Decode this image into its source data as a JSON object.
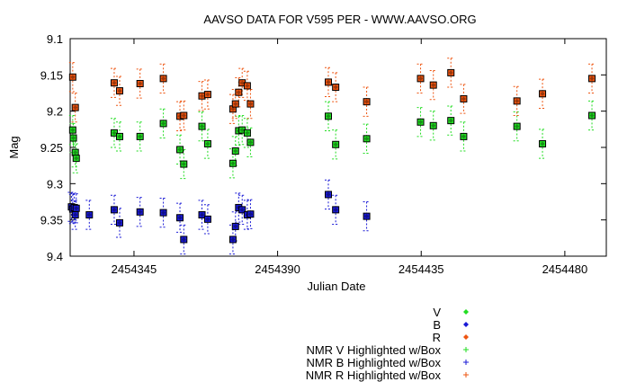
{
  "chart_data": {
    "type": "scatter",
    "title": "AAVSO DATA FOR V595 PER - WWW.AAVSO.ORG",
    "xlabel": "Julian Date",
    "ylabel": "Mag",
    "xlim": [
      2454325,
      2454493
    ],
    "ylim": [
      9.1,
      9.4
    ],
    "y_inverted": true,
    "grid": false,
    "legend_position": "bottom-right",
    "x_ticks": [
      {
        "value": 2454345,
        "label": "2454345"
      },
      {
        "value": 2454390,
        "label": "2454390"
      },
      {
        "value": 2454435,
        "label": "2454435"
      },
      {
        "value": 2454480,
        "label": "2454480"
      }
    ],
    "y_ticks": [
      {
        "value": 9.1,
        "label": "9.1"
      },
      {
        "value": 9.15,
        "label": "9.15"
      },
      {
        "value": 9.2,
        "label": "9.2"
      },
      {
        "value": 9.25,
        "label": "9.25"
      },
      {
        "value": 9.3,
        "label": "9.3"
      },
      {
        "value": 9.35,
        "label": "9.35"
      },
      {
        "value": 9.4,
        "label": "9.4"
      }
    ],
    "series": [
      {
        "name": "V",
        "color": "#22dd22",
        "marker": "diamond",
        "points": [
          {
            "x": 2454325.8,
            "y": 9.226,
            "err": 0.02
          },
          {
            "x": 2454326.0,
            "y": 9.237,
            "err": 0.02
          },
          {
            "x": 2454326.6,
            "y": 9.257,
            "err": 0.02
          },
          {
            "x": 2454326.9,
            "y": 9.265,
            "err": 0.02
          },
          {
            "x": 2454338.8,
            "y": 9.23,
            "err": 0.02
          },
          {
            "x": 2454340.5,
            "y": 9.235,
            "err": 0.02
          },
          {
            "x": 2454346.9,
            "y": 9.235,
            "err": 0.02
          },
          {
            "x": 2454354.2,
            "y": 9.217,
            "err": 0.02
          },
          {
            "x": 2454359.4,
            "y": 9.253,
            "err": 0.02
          },
          {
            "x": 2454360.6,
            "y": 9.273,
            "err": 0.02
          },
          {
            "x": 2454366.3,
            "y": 9.221,
            "err": 0.02
          },
          {
            "x": 2454368.1,
            "y": 9.245,
            "err": 0.02
          },
          {
            "x": 2454376.0,
            "y": 9.272,
            "err": 0.02
          },
          {
            "x": 2454376.8,
            "y": 9.255,
            "err": 0.02
          },
          {
            "x": 2454377.8,
            "y": 9.227,
            "err": 0.02
          },
          {
            "x": 2454378.9,
            "y": 9.226,
            "err": 0.02
          },
          {
            "x": 2454380.5,
            "y": 9.23,
            "err": 0.02
          },
          {
            "x": 2454381.5,
            "y": 9.243,
            "err": 0.02
          },
          {
            "x": 2454405.9,
            "y": 9.207,
            "err": 0.02
          },
          {
            "x": 2454408.2,
            "y": 9.246,
            "err": 0.02
          },
          {
            "x": 2454417.9,
            "y": 9.238,
            "err": 0.02
          },
          {
            "x": 2454434.8,
            "y": 9.215,
            "err": 0.02
          },
          {
            "x": 2454438.8,
            "y": 9.22,
            "err": 0.02
          },
          {
            "x": 2454444.3,
            "y": 9.213,
            "err": 0.02
          },
          {
            "x": 2454448.3,
            "y": 9.235,
            "err": 0.02
          },
          {
            "x": 2454465.0,
            "y": 9.221,
            "err": 0.02
          },
          {
            "x": 2454473.0,
            "y": 9.245,
            "err": 0.02
          },
          {
            "x": 2454488.5,
            "y": 9.206,
            "err": 0.02
          }
        ]
      },
      {
        "name": "B",
        "color": "#1a1ad6",
        "marker": "diamond",
        "points": [
          {
            "x": 2454325.4,
            "y": 9.332,
            "err": 0.02
          },
          {
            "x": 2454325.8,
            "y": 9.335,
            "err": 0.02
          },
          {
            "x": 2454326.3,
            "y": 9.333,
            "err": 0.02
          },
          {
            "x": 2454326.6,
            "y": 9.343,
            "err": 0.02
          },
          {
            "x": 2454326.9,
            "y": 9.334,
            "err": 0.02
          },
          {
            "x": 2454331.0,
            "y": 9.343,
            "err": 0.02
          },
          {
            "x": 2454338.8,
            "y": 9.336,
            "err": 0.02
          },
          {
            "x": 2454340.5,
            "y": 9.354,
            "err": 0.02
          },
          {
            "x": 2454346.9,
            "y": 9.339,
            "err": 0.02
          },
          {
            "x": 2454354.2,
            "y": 9.34,
            "err": 0.02
          },
          {
            "x": 2454359.4,
            "y": 9.347,
            "err": 0.02
          },
          {
            "x": 2454360.6,
            "y": 9.377,
            "err": 0.02
          },
          {
            "x": 2454366.3,
            "y": 9.343,
            "err": 0.02
          },
          {
            "x": 2454368.1,
            "y": 9.349,
            "err": 0.02
          },
          {
            "x": 2454376.0,
            "y": 9.377,
            "err": 0.02
          },
          {
            "x": 2454376.8,
            "y": 9.359,
            "err": 0.02
          },
          {
            "x": 2454377.8,
            "y": 9.333,
            "err": 0.02
          },
          {
            "x": 2454378.9,
            "y": 9.336,
            "err": 0.02
          },
          {
            "x": 2454380.5,
            "y": 9.343,
            "err": 0.02
          },
          {
            "x": 2454381.5,
            "y": 9.342,
            "err": 0.02
          },
          {
            "x": 2454405.9,
            "y": 9.315,
            "err": 0.02
          },
          {
            "x": 2454408.2,
            "y": 9.336,
            "err": 0.02
          },
          {
            "x": 2454417.9,
            "y": 9.345,
            "err": 0.02
          }
        ]
      },
      {
        "name": "R",
        "color": "#ee5511",
        "marker": "diamond",
        "points": [
          {
            "x": 2454325.8,
            "y": 9.153,
            "err": 0.02
          },
          {
            "x": 2454326.6,
            "y": 9.195,
            "err": 0.02
          },
          {
            "x": 2454338.8,
            "y": 9.161,
            "err": 0.02
          },
          {
            "x": 2454340.5,
            "y": 9.172,
            "err": 0.02
          },
          {
            "x": 2454346.9,
            "y": 9.162,
            "err": 0.02
          },
          {
            "x": 2454354.2,
            "y": 9.155,
            "err": 0.02
          },
          {
            "x": 2454359.4,
            "y": 9.207,
            "err": 0.02
          },
          {
            "x": 2454360.6,
            "y": 9.206,
            "err": 0.02
          },
          {
            "x": 2454366.3,
            "y": 9.179,
            "err": 0.02
          },
          {
            "x": 2454368.1,
            "y": 9.177,
            "err": 0.02
          },
          {
            "x": 2454376.0,
            "y": 9.197,
            "err": 0.02
          },
          {
            "x": 2454376.8,
            "y": 9.19,
            "err": 0.02
          },
          {
            "x": 2454377.8,
            "y": 9.174,
            "err": 0.02
          },
          {
            "x": 2454378.9,
            "y": 9.161,
            "err": 0.02
          },
          {
            "x": 2454380.5,
            "y": 9.165,
            "err": 0.02
          },
          {
            "x": 2454381.5,
            "y": 9.19,
            "err": 0.02
          },
          {
            "x": 2454405.9,
            "y": 9.16,
            "err": 0.02
          },
          {
            "x": 2454408.2,
            "y": 9.167,
            "err": 0.02
          },
          {
            "x": 2454417.9,
            "y": 9.187,
            "err": 0.02
          },
          {
            "x": 2454434.8,
            "y": 9.155,
            "err": 0.02
          },
          {
            "x": 2454438.8,
            "y": 9.164,
            "err": 0.02
          },
          {
            "x": 2454444.3,
            "y": 9.147,
            "err": 0.02
          },
          {
            "x": 2454448.3,
            "y": 9.183,
            "err": 0.02
          },
          {
            "x": 2454465.0,
            "y": 9.186,
            "err": 0.02
          },
          {
            "x": 2454473.0,
            "y": 9.176,
            "err": 0.02
          },
          {
            "x": 2454488.5,
            "y": 9.155,
            "err": 0.02
          }
        ]
      }
    ],
    "legend": [
      {
        "label": "V",
        "color": "#22dd22",
        "marker": "diamond"
      },
      {
        "label": "B",
        "color": "#1a1ad6",
        "marker": "diamond"
      },
      {
        "label": "R",
        "color": "#ee5511",
        "marker": "diamond"
      },
      {
        "label": "NMR V Highlighted w/Box",
        "color": "#22dd22",
        "marker": "plus"
      },
      {
        "label": "NMR B Highlighted w/Box",
        "color": "#1a1ad6",
        "marker": "plus"
      },
      {
        "label": "NMR R Highlighted w/Box",
        "color": "#ee5511",
        "marker": "plus"
      }
    ]
  }
}
